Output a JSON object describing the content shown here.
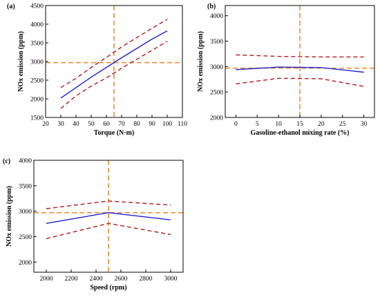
{
  "colors": {
    "central": "#1f1fcc",
    "bound": "#b0191e",
    "reference": "#e8892b",
    "axis": "#000000"
  },
  "chart_data": [
    {
      "type": "line",
      "panel_label": "(a)",
      "xlabel": "Torque (N·m)",
      "ylabel": "NOx emission (ppm)",
      "xlim": [
        20,
        110
      ],
      "ylim": [
        1500,
        4500
      ],
      "xticks": [
        "20",
        "30",
        "40",
        "50",
        "60",
        "70",
        "80",
        "90",
        "100",
        "110"
      ],
      "yticks": [
        "1500",
        "2000",
        "2500",
        "3000",
        "3500",
        "4000",
        "4500"
      ],
      "x": [
        30,
        40,
        50,
        60,
        70,
        80,
        90,
        100
      ],
      "series": [
        {
          "role": "central",
          "style": "solid",
          "values": [
            2020,
            2300,
            2580,
            2840,
            3100,
            3350,
            3600,
            3820
          ]
        },
        {
          "role": "upper",
          "style": "dashed",
          "values": [
            2300,
            2550,
            2840,
            3110,
            3390,
            3640,
            3890,
            4130
          ]
        },
        {
          "role": "lower",
          "style": "dashed",
          "values": [
            1740,
            2080,
            2340,
            2560,
            2820,
            3060,
            3300,
            3540
          ]
        }
      ],
      "reference_lines": {
        "x": 65,
        "y": 2970
      },
      "grid": false
    },
    {
      "type": "line",
      "panel_label": "(b)",
      "xlabel": "Gasoline-ethanol mixing rate (%)",
      "ylabel": "NOx emission (ppm)",
      "xlim": [
        -2.5,
        32.5
      ],
      "ylim": [
        2000,
        4200
      ],
      "xticks": [
        "0",
        "5",
        "10",
        "15",
        "20",
        "25",
        "30"
      ],
      "yticks": [
        "2000",
        "2500",
        "3000",
        "3500",
        "4000"
      ],
      "x": [
        0,
        10,
        20,
        30
      ],
      "series": [
        {
          "role": "central",
          "style": "solid",
          "values": [
            2940,
            2990,
            2980,
            2890
          ]
        },
        {
          "role": "upper",
          "style": "dashed",
          "values": [
            3230,
            3200,
            3190,
            3190
          ]
        },
        {
          "role": "lower",
          "style": "dashed",
          "values": [
            2660,
            2770,
            2760,
            2610
          ]
        }
      ],
      "reference_lines": {
        "x": 15,
        "y": 2970
      },
      "grid": false
    },
    {
      "type": "line",
      "panel_label": "(c)",
      "xlabel": "Speed (rpm)",
      "ylabel": "NOx emission (ppm)",
      "xlim": [
        1900,
        3100
      ],
      "ylim": [
        1800,
        4000
      ],
      "xticks": [
        "2000",
        "2200",
        "2400",
        "2600",
        "2800",
        "3000"
      ],
      "yticks": [
        "2000",
        "2500",
        "3000",
        "3500",
        "4000"
      ],
      "x": [
        2000,
        2500,
        3000
      ],
      "series": [
        {
          "role": "central",
          "style": "solid",
          "values": [
            2760,
            2970,
            2830
          ]
        },
        {
          "role": "upper",
          "style": "dashed",
          "values": [
            3050,
            3200,
            3120
          ]
        },
        {
          "role": "lower",
          "style": "dashed",
          "values": [
            2460,
            2760,
            2540
          ]
        }
      ],
      "reference_lines": {
        "x": 2500,
        "y": 2970
      },
      "grid": false
    }
  ]
}
